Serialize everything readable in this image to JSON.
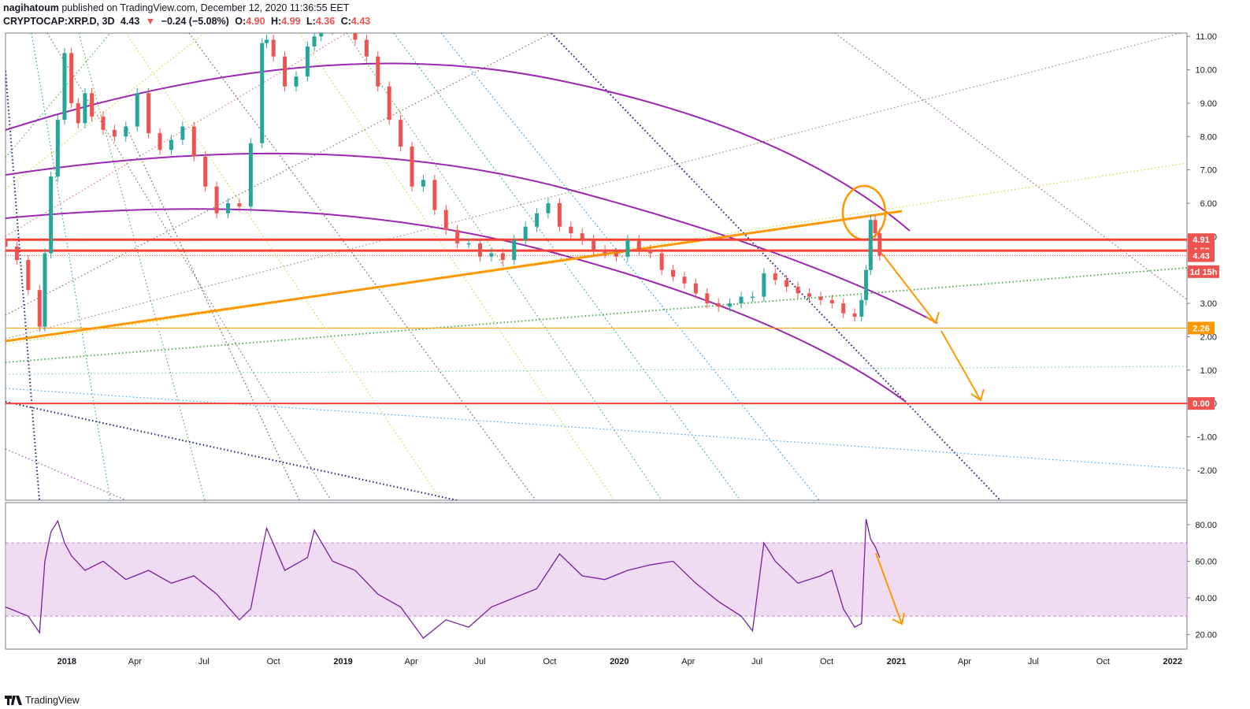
{
  "header": {
    "publisher": "nagihatoum",
    "published_text": "published on TradingView.com, December 12, 2020 11:36:55 EET",
    "symbol": "CRYPTOCAP:XRP.D, 3D",
    "last": "4.43",
    "change": "−0.24 (−5.08%)",
    "o_label": "O:",
    "o_value": "4.90",
    "h_label": "H:",
    "h_value": "4.99",
    "l_label": "L:",
    "l_value": "4.36",
    "c_label": "C:",
    "c_value": "4.43"
  },
  "footer": {
    "brand": "TradingView"
  },
  "colors": {
    "bg": "#ffffff",
    "up": "#26a69a",
    "down": "#ef5350",
    "purple": "#9c27b0",
    "orange": "#ff9800",
    "red_line": "#f44336",
    "rsi_line": "#7b1fa2",
    "rsi_band": "#e1bee7"
  },
  "price_badges": [
    {
      "text": "4.91",
      "value": 4.91,
      "bg": "#ef5350"
    },
    {
      "text": "4.58",
      "value": 4.58,
      "bg": "#ef5350"
    },
    {
      "text": "4.43",
      "value": 4.43,
      "bg": "#ef5350"
    },
    {
      "text": "1d 15h",
      "value": 3.95,
      "bg": "#ef5350"
    },
    {
      "text": "2.26",
      "value": 2.26,
      "bg": "#ff9800"
    },
    {
      "text": "0.00",
      "value": 0.0,
      "bg": "#ef5350"
    }
  ],
  "chart_data": [
    {
      "type": "candlestick",
      "title": "CRYPTOCAP:XRP.D, 3D",
      "ylim": [
        -2.9,
        11.1
      ],
      "y_ticks": [
        "11.00",
        "10.00",
        "9.00",
        "8.00",
        "7.00",
        "6.00",
        "5.00",
        "4.00",
        "3.00",
        "2.00",
        "1.00",
        "0.00",
        "-1.00",
        "-2.00"
      ],
      "x_ticks": [
        "2018",
        "Apr",
        "Jul",
        "Oct",
        "2019",
        "Apr",
        "Jul",
        "Oct",
        "2020",
        "Apr",
        "Jul",
        "Oct",
        "2021",
        "Apr",
        "Jul",
        "Oct",
        "2022"
      ],
      "x_range": [
        "2017-10-12",
        "2022-01-20"
      ],
      "series": [
        {
          "x": [
            "2017-10-12",
            "2017-10-27",
            "2017-11-11",
            "2017-11-26",
            "2017-12-03",
            "2017-12-11",
            "2017-12-20",
            "2017-12-29",
            "2018-01-07",
            "2018-01-16",
            "2018-01-25",
            "2018-02-03",
            "2018-02-18",
            "2018-03-05",
            "2018-03-20",
            "2018-04-04",
            "2018-04-19",
            "2018-05-04",
            "2018-05-19",
            "2018-06-03",
            "2018-06-18",
            "2018-07-03",
            "2018-07-18",
            "2018-08-02",
            "2018-08-17",
            "2018-09-01",
            "2018-09-16",
            "2018-09-22",
            "2018-10-01",
            "2018-10-16",
            "2018-10-31",
            "2018-11-15",
            "2018-11-24",
            "2018-12-03",
            "2018-12-18",
            "2019-01-02",
            "2019-01-17",
            "2019-02-01",
            "2019-02-16",
            "2019-03-03",
            "2019-03-18",
            "2019-04-02",
            "2019-04-17",
            "2019-05-02",
            "2019-05-17",
            "2019-06-01",
            "2019-06-16",
            "2019-07-01",
            "2019-07-16",
            "2019-07-31",
            "2019-08-15",
            "2019-08-30",
            "2019-09-14",
            "2019-09-29",
            "2019-10-14",
            "2019-10-29",
            "2019-11-13",
            "2019-11-28",
            "2019-12-13",
            "2019-12-28",
            "2020-01-12",
            "2020-01-27",
            "2020-02-11",
            "2020-02-26",
            "2020-03-12",
            "2020-03-27",
            "2020-04-11",
            "2020-04-26",
            "2020-05-11",
            "2020-05-26",
            "2020-06-10",
            "2020-06-25",
            "2020-07-10",
            "2020-07-25",
            "2020-08-09",
            "2020-08-24",
            "2020-09-08",
            "2020-09-23",
            "2020-10-08",
            "2020-10-23",
            "2020-11-07",
            "2020-11-16",
            "2020-11-22",
            "2020-11-28",
            "2020-12-04",
            "2020-12-10"
          ],
          "close": [
            4.7,
            4.3,
            3.4,
            2.3,
            4.5,
            6.8,
            8.5,
            10.5,
            9.0,
            8.4,
            9.3,
            8.6,
            8.2,
            8.0,
            8.3,
            9.3,
            8.1,
            7.6,
            7.9,
            8.3,
            7.4,
            6.5,
            5.7,
            6.0,
            5.9,
            7.8,
            10.8,
            10.9,
            10.4,
            9.5,
            9.8,
            10.7,
            11.0,
            11.2,
            11.6,
            11.3,
            10.9,
            10.4,
            9.5,
            8.5,
            7.7,
            6.5,
            6.7,
            5.8,
            5.2,
            4.8,
            4.8,
            4.4,
            4.5,
            4.3,
            4.9,
            5.3,
            5.7,
            6.0,
            5.3,
            5.1,
            4.9,
            4.6,
            4.5,
            4.4,
            4.9,
            4.6,
            4.5,
            4.0,
            3.8,
            3.6,
            3.3,
            3.0,
            2.9,
            3.0,
            3.2,
            3.2,
            3.9,
            3.7,
            3.5,
            3.3,
            3.2,
            3.1,
            3.0,
            2.7,
            2.6,
            3.1,
            4.0,
            5.5,
            5.1,
            4.43
          ]
        }
      ]
    },
    {
      "type": "line",
      "title": "",
      "ylim": [
        12,
        92
      ],
      "y_ticks": [
        "80.00",
        "60.00",
        "40.00",
        "20.00"
      ],
      "bands": [
        30,
        70
      ],
      "series": [
        {
          "x": [
            "2017-10-12",
            "2017-11-11",
            "2017-11-26",
            "2017-12-03",
            "2017-12-11",
            "2017-12-20",
            "2017-12-29",
            "2018-01-07",
            "2018-01-25",
            "2018-02-18",
            "2018-03-20",
            "2018-04-19",
            "2018-05-19",
            "2018-06-18",
            "2018-07-18",
            "2018-08-17",
            "2018-09-01",
            "2018-09-16",
            "2018-09-22",
            "2018-10-16",
            "2018-11-15",
            "2018-11-24",
            "2018-12-18",
            "2019-01-17",
            "2019-02-16",
            "2019-03-18",
            "2019-04-17",
            "2019-05-17",
            "2019-06-16",
            "2019-07-16",
            "2019-08-15",
            "2019-09-14",
            "2019-10-14",
            "2019-11-13",
            "2019-12-13",
            "2020-01-12",
            "2020-02-11",
            "2020-03-12",
            "2020-04-11",
            "2020-05-11",
            "2020-06-10",
            "2020-06-25",
            "2020-07-10",
            "2020-07-25",
            "2020-08-24",
            "2020-09-23",
            "2020-10-08",
            "2020-10-23",
            "2020-11-07",
            "2020-11-16",
            "2020-11-22",
            "2020-11-28",
            "2020-12-04",
            "2020-12-10"
          ],
          "values": [
            35,
            30,
            21,
            60,
            76,
            82,
            70,
            63,
            55,
            60,
            50,
            55,
            48,
            52,
            42,
            28,
            34,
            66,
            78,
            55,
            62,
            77,
            60,
            55,
            42,
            35,
            18,
            28,
            24,
            35,
            40,
            45,
            64,
            52,
            50,
            55,
            58,
            60,
            48,
            38,
            30,
            22,
            70,
            60,
            48,
            52,
            55,
            34,
            24,
            26,
            83,
            72,
            68,
            62
          ]
        }
      ]
    }
  ]
}
